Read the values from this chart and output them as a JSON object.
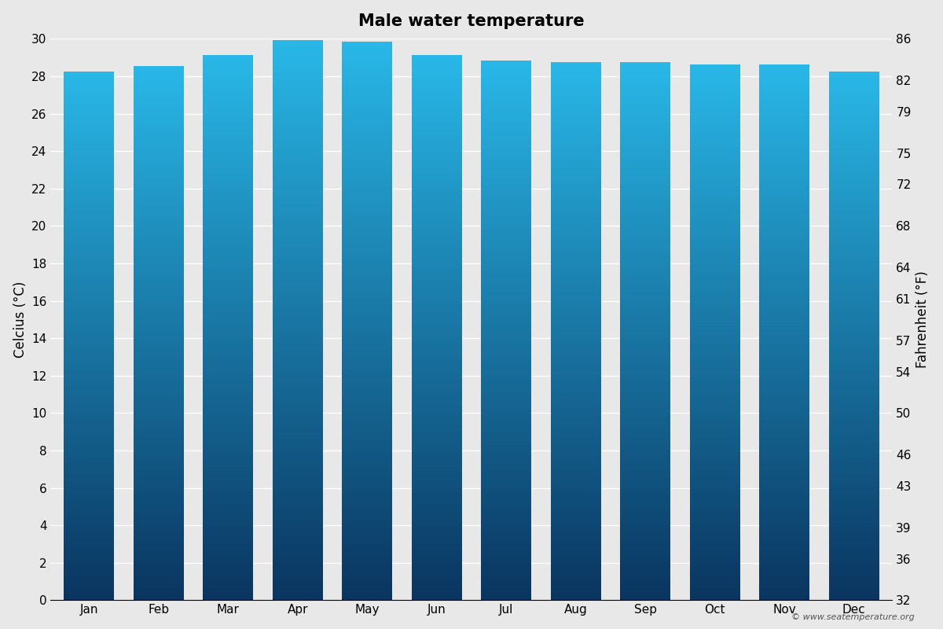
{
  "title": "Male water temperature",
  "months": [
    "Jan",
    "Feb",
    "Mar",
    "Apr",
    "May",
    "Jun",
    "Jul",
    "Aug",
    "Sep",
    "Oct",
    "Nov",
    "Dec"
  ],
  "temps_c": [
    28.2,
    28.5,
    29.1,
    29.9,
    29.8,
    29.1,
    28.8,
    28.7,
    28.7,
    28.6,
    28.6,
    28.2
  ],
  "ylabel_left": "Celcius (°C)",
  "ylabel_right": "Fahrenheit (°F)",
  "ylim_c": [
    0,
    30
  ],
  "yticks_c": [
    0,
    2,
    4,
    6,
    8,
    10,
    12,
    14,
    16,
    18,
    20,
    22,
    24,
    26,
    28,
    30
  ],
  "yticks_f": [
    32,
    36,
    39,
    43,
    46,
    50,
    54,
    57,
    61,
    64,
    68,
    72,
    75,
    79,
    82,
    86
  ],
  "background_color": "#e8e8e8",
  "bar_top_color": "#29b8e8",
  "bar_bottom_color": "#0a3560",
  "copyright_text": "© www.seatemperature.org",
  "title_fontsize": 15,
  "axis_label_fontsize": 12,
  "tick_fontsize": 11,
  "bar_width": 0.72,
  "grid_color": "#ffffff"
}
